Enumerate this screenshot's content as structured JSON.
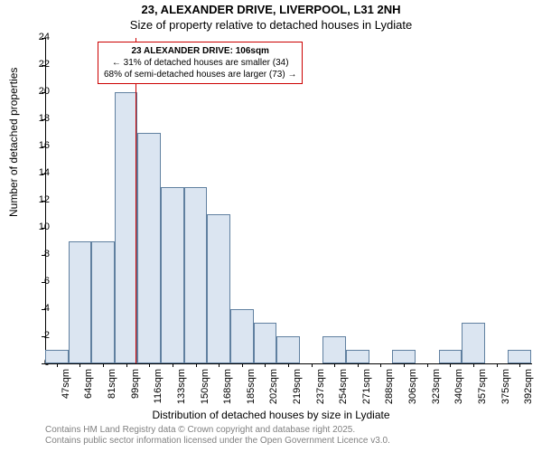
{
  "title_main": "23, ALEXANDER DRIVE, LIVERPOOL, L31 2NH",
  "title_sub": "Size of property relative to detached houses in Lydiate",
  "ylabel": "Number of detached properties",
  "xlabel": "Distribution of detached houses by size in Lydiate",
  "attrib_line1": "Contains HM Land Registry data © Crown copyright and database right 2025.",
  "attrib_line2": "Contains public sector information licensed under the Open Government Licence v3.0.",
  "chart": {
    "type": "histogram",
    "ylim": [
      0,
      24
    ],
    "ytick_step": 2,
    "bar_fill": "#dbe5f1",
    "bar_stroke": "#6080a0",
    "background": "#ffffff",
    "ref_line_color": "#cc0000",
    "ref_value_x": 106,
    "categories": [
      "47sqm",
      "64sqm",
      "81sqm",
      "99sqm",
      "116sqm",
      "133sqm",
      "150sqm",
      "168sqm",
      "185sqm",
      "202sqm",
      "219sqm",
      "237sqm",
      "254sqm",
      "271sqm",
      "288sqm",
      "306sqm",
      "323sqm",
      "340sqm",
      "357sqm",
      "375sqm",
      "392sqm"
    ],
    "values": [
      1,
      9,
      9,
      20,
      17,
      13,
      13,
      11,
      4,
      3,
      2,
      0,
      2,
      1,
      0,
      1,
      0,
      1,
      3,
      0,
      1
    ],
    "annotation": {
      "title": "23 ALEXANDER DRIVE: 106sqm",
      "line2": "← 31% of detached houses are smaller (34)",
      "line3": "68% of semi-detached houses are larger (73) →"
    }
  }
}
